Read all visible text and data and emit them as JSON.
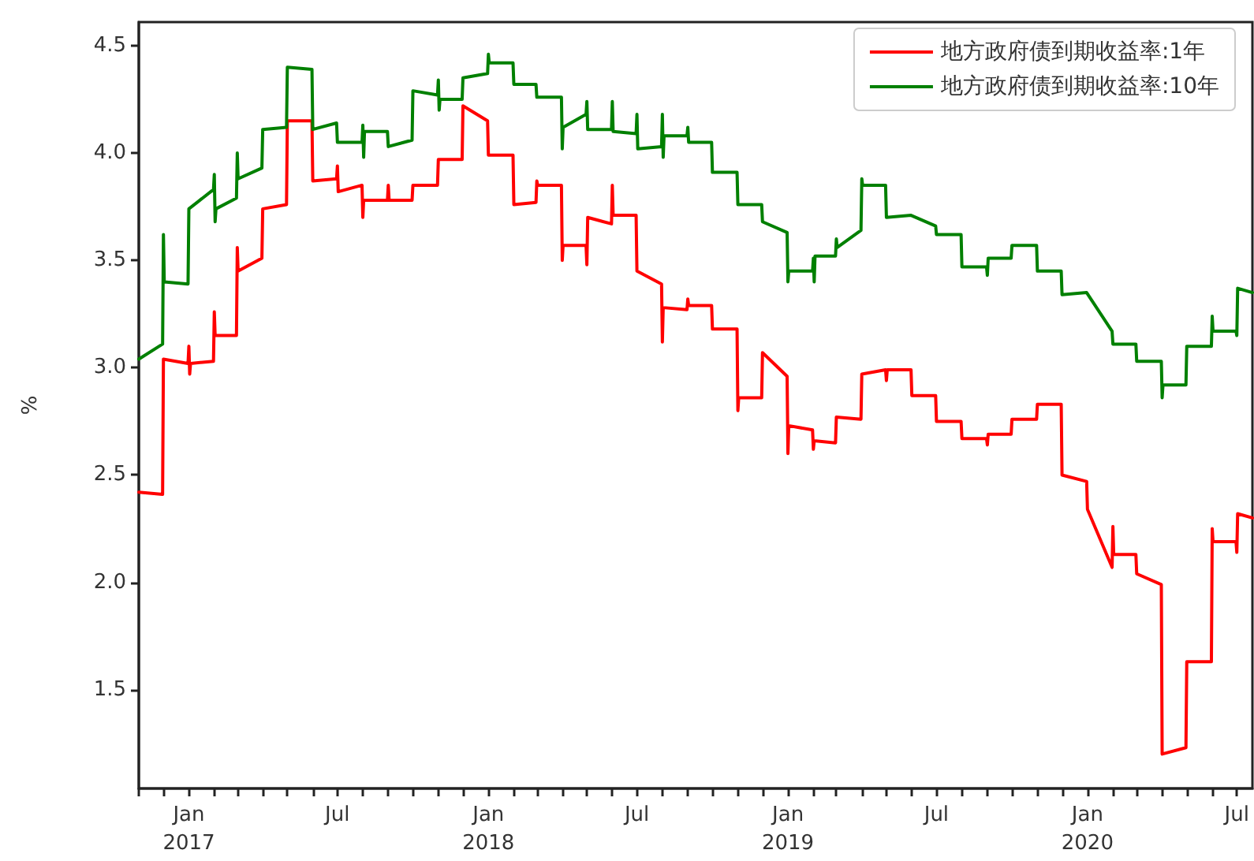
{
  "chart_data": {
    "type": "line",
    "ylabel": "%",
    "legend": "top right",
    "grid": false,
    "xlim": [
      "2016-11-01",
      "2020-07-20"
    ],
    "xticks": [
      {
        "value": "2016-11-01",
        "label": null
      },
      {
        "value": "2016-12-01",
        "label": null
      },
      {
        "value": "2017-01-01",
        "label": "Jan\n2017"
      },
      {
        "value": "2017-02-01",
        "label": null
      },
      {
        "value": "2017-03-01",
        "label": null
      },
      {
        "value": "2017-04-01",
        "label": null
      },
      {
        "value": "2017-05-01",
        "label": null
      },
      {
        "value": "2017-06-01",
        "label": null
      },
      {
        "value": "2017-07-01",
        "label": "Jul"
      },
      {
        "value": "2017-08-01",
        "label": null
      },
      {
        "value": "2017-09-01",
        "label": null
      },
      {
        "value": "2017-10-01",
        "label": null
      },
      {
        "value": "2017-11-01",
        "label": null
      },
      {
        "value": "2017-12-01",
        "label": null
      },
      {
        "value": "2018-01-01",
        "label": "Jan\n2018"
      },
      {
        "value": "2018-02-01",
        "label": null
      },
      {
        "value": "2018-03-01",
        "label": null
      },
      {
        "value": "2018-04-01",
        "label": null
      },
      {
        "value": "2018-05-01",
        "label": null
      },
      {
        "value": "2018-06-01",
        "label": null
      },
      {
        "value": "2018-07-01",
        "label": "Jul"
      },
      {
        "value": "2018-08-01",
        "label": null
      },
      {
        "value": "2018-09-01",
        "label": null
      },
      {
        "value": "2018-10-01",
        "label": null
      },
      {
        "value": "2018-11-01",
        "label": null
      },
      {
        "value": "2018-12-01",
        "label": null
      },
      {
        "value": "2019-01-01",
        "label": "Jan\n2019"
      },
      {
        "value": "2019-02-01",
        "label": null
      },
      {
        "value": "2019-03-01",
        "label": null
      },
      {
        "value": "2019-04-01",
        "label": null
      },
      {
        "value": "2019-05-01",
        "label": null
      },
      {
        "value": "2019-06-01",
        "label": null
      },
      {
        "value": "2019-07-01",
        "label": "Jul"
      },
      {
        "value": "2019-08-01",
        "label": null
      },
      {
        "value": "2019-09-01",
        "label": null
      },
      {
        "value": "2019-10-01",
        "label": null
      },
      {
        "value": "2019-11-01",
        "label": null
      },
      {
        "value": "2019-12-01",
        "label": null
      },
      {
        "value": "2020-01-01",
        "label": "Jan\n2020"
      },
      {
        "value": "2020-02-01",
        "label": null
      },
      {
        "value": "2020-03-01",
        "label": null
      },
      {
        "value": "2020-04-01",
        "label": null
      },
      {
        "value": "2020-05-01",
        "label": null
      },
      {
        "value": "2020-06-01",
        "label": null
      },
      {
        "value": "2020-07-01",
        "label": "Jul"
      }
    ],
    "ylim": [
      1.04,
      4.61
    ],
    "yticks": [
      {
        "value": 1.5,
        "label": "1.5"
      },
      {
        "value": 2,
        "label": "2.0"
      },
      {
        "value": 2.5,
        "label": "2.5"
      },
      {
        "value": 3,
        "label": "3.0"
      },
      {
        "value": 3.5,
        "label": "3.5"
      },
      {
        "value": 4,
        "label": "4.0"
      },
      {
        "value": 4.5,
        "label": "4.5"
      }
    ],
    "series": [
      {
        "name": "地方政府债到期收益率:1年",
        "color": "#ff0000",
        "x": [
          "2016-11-01",
          "2016-11-30",
          "2016-12-01",
          "2016-12-31",
          "2017-01-01",
          "2017-01-02",
          "2017-01-03",
          "2017-01-31",
          "2017-02-01",
          "2017-02-02",
          "2017-02-28",
          "2017-03-01",
          "2017-03-02",
          "2017-03-31",
          "2017-04-01",
          "2017-04-30",
          "2017-05-01",
          "2017-05-31",
          "2017-06-01",
          "2017-06-30",
          "2017-07-01",
          "2017-07-02",
          "2017-07-31",
          "2017-08-01",
          "2017-08-02",
          "2017-08-31",
          "2017-09-01",
          "2017-09-02",
          "2017-09-30",
          "2017-10-01",
          "2017-10-31",
          "2017-11-01",
          "2017-11-30",
          "2017-12-01",
          "2017-12-31",
          "2018-01-01",
          "2018-01-31",
          "2018-02-01",
          "2018-02-28",
          "2018-03-01",
          "2018-03-02",
          "2018-03-31",
          "2018-04-01",
          "2018-04-02",
          "2018-04-30",
          "2018-05-01",
          "2018-05-02",
          "2018-05-31",
          "2018-06-01",
          "2018-06-02",
          "2018-06-30",
          "2018-07-01",
          "2018-07-31",
          "2018-08-01",
          "2018-08-02",
          "2018-08-31",
          "2018-09-01",
          "2018-09-02",
          "2018-09-30",
          "2018-10-01",
          "2018-10-31",
          "2018-11-01",
          "2018-11-02",
          "2018-11-30",
          "2018-12-01",
          "2018-12-31",
          "2019-01-01",
          "2019-01-02",
          "2019-01-31",
          "2019-02-01",
          "2019-02-02",
          "2019-02-28",
          "2019-03-01",
          "2019-03-31",
          "2019-04-01",
          "2019-04-30",
          "2019-05-01",
          "2019-05-02",
          "2019-05-31",
          "2019-06-01",
          "2019-06-30",
          "2019-07-01",
          "2019-07-31",
          "2019-08-01",
          "2019-08-31",
          "2019-09-01",
          "2019-09-02",
          "2019-09-30",
          "2019-10-01",
          "2019-10-31",
          "2019-11-01",
          "2019-11-30",
          "2019-12-01",
          "2019-12-31",
          "2020-01-01",
          "2020-01-31",
          "2020-02-01",
          "2020-02-02",
          "2020-02-29",
          "2020-03-01",
          "2020-03-31",
          "2020-04-01",
          "2020-04-30",
          "2020-05-01",
          "2020-05-31",
          "2020-06-01",
          "2020-06-02",
          "2020-06-30",
          "2020-07-01",
          "2020-07-02",
          "2020-07-20"
        ],
        "values": [
          2.42,
          2.41,
          3.04,
          3.02,
          3.1,
          2.97,
          3.02,
          3.03,
          3.26,
          3.15,
          3.15,
          3.56,
          3.45,
          3.51,
          3.74,
          3.76,
          4.15,
          4.15,
          3.87,
          3.88,
          3.94,
          3.82,
          3.85,
          3.7,
          3.78,
          3.78,
          3.85,
          3.78,
          3.78,
          3.85,
          3.85,
          3.97,
          3.97,
          4.22,
          4.15,
          3.99,
          3.99,
          3.76,
          3.77,
          3.87,
          3.85,
          3.85,
          3.5,
          3.57,
          3.57,
          3.48,
          3.7,
          3.67,
          3.85,
          3.71,
          3.71,
          3.45,
          3.39,
          3.12,
          3.28,
          3.27,
          3.32,
          3.29,
          3.29,
          3.18,
          3.18,
          2.8,
          2.86,
          2.86,
          3.07,
          2.96,
          2.6,
          2.73,
          2.71,
          2.62,
          2.66,
          2.65,
          2.77,
          2.76,
          2.97,
          2.99,
          2.94,
          2.99,
          2.99,
          2.87,
          2.87,
          2.75,
          2.75,
          2.67,
          2.67,
          2.64,
          2.69,
          2.69,
          2.76,
          2.76,
          2.83,
          2.83,
          2.5,
          2.47,
          2.34,
          2.07,
          2.26,
          2.13,
          2.13,
          2.04,
          1.99,
          1.2,
          1.23,
          1.63,
          1.63,
          2.25,
          2.19,
          2.19,
          2.14,
          2.32,
          2.3
        ]
      },
      {
        "name": "地方政府债到期收益率:10年",
        "color": "#008000",
        "x": [
          "2016-11-01",
          "2016-11-30",
          "2016-12-01",
          "2016-12-02",
          "2016-12-31",
          "2017-01-01",
          "2017-01-31",
          "2017-02-01",
          "2017-02-02",
          "2017-02-03",
          "2017-02-28",
          "2017-03-01",
          "2017-03-02",
          "2017-03-31",
          "2017-04-01",
          "2017-04-30",
          "2017-05-01",
          "2017-05-31",
          "2017-06-01",
          "2017-06-30",
          "2017-07-01",
          "2017-07-31",
          "2017-08-01",
          "2017-08-02",
          "2017-08-03",
          "2017-08-31",
          "2017-09-01",
          "2017-09-30",
          "2017-10-01",
          "2017-10-31",
          "2017-11-01",
          "2017-11-02",
          "2017-11-03",
          "2017-11-30",
          "2017-12-01",
          "2017-12-31",
          "2018-01-01",
          "2018-01-02",
          "2018-01-31",
          "2018-02-01",
          "2018-02-28",
          "2018-03-01",
          "2018-03-31",
          "2018-04-01",
          "2018-04-02",
          "2018-04-30",
          "2018-05-01",
          "2018-05-02",
          "2018-05-31",
          "2018-06-01",
          "2018-06-02",
          "2018-06-30",
          "2018-07-01",
          "2018-07-02",
          "2018-07-31",
          "2018-08-01",
          "2018-08-02",
          "2018-08-03",
          "2018-08-31",
          "2018-09-01",
          "2018-09-02",
          "2018-09-30",
          "2018-10-01",
          "2018-10-31",
          "2018-11-01",
          "2018-11-30",
          "2018-12-01",
          "2018-12-31",
          "2019-01-01",
          "2019-01-02",
          "2019-01-31",
          "2019-02-01",
          "2019-02-02",
          "2019-02-03",
          "2019-02-28",
          "2019-03-01",
          "2019-03-02",
          "2019-03-31",
          "2019-04-01",
          "2019-04-02",
          "2019-04-30",
          "2019-05-01",
          "2019-05-31",
          "2019-06-01",
          "2019-06-30",
          "2019-07-01",
          "2019-07-31",
          "2019-08-01",
          "2019-08-31",
          "2019-09-01",
          "2019-09-02",
          "2019-09-30",
          "2019-10-01",
          "2019-10-31",
          "2019-11-01",
          "2019-11-30",
          "2019-12-01",
          "2019-12-31",
          "2020-01-01",
          "2020-01-31",
          "2020-02-01",
          "2020-02-29",
          "2020-03-01",
          "2020-03-31",
          "2020-04-01",
          "2020-04-02",
          "2020-04-30",
          "2020-05-01",
          "2020-05-31",
          "2020-06-01",
          "2020-06-02",
          "2020-06-30",
          "2020-07-01",
          "2020-07-02",
          "2020-07-20"
        ],
        "values": [
          3.04,
          3.11,
          3.62,
          3.4,
          3.39,
          3.74,
          3.83,
          3.9,
          3.68,
          3.74,
          3.79,
          4.0,
          3.88,
          3.93,
          4.11,
          4.12,
          4.4,
          4.39,
          4.11,
          4.14,
          4.05,
          4.05,
          4.13,
          3.98,
          4.1,
          4.1,
          4.03,
          4.06,
          4.29,
          4.27,
          4.34,
          4.2,
          4.25,
          4.25,
          4.35,
          4.37,
          4.46,
          4.42,
          4.42,
          4.32,
          4.32,
          4.26,
          4.26,
          4.02,
          4.12,
          4.18,
          4.24,
          4.11,
          4.11,
          4.24,
          4.1,
          4.09,
          4.18,
          4.02,
          4.03,
          4.18,
          3.98,
          4.08,
          4.08,
          4.12,
          4.05,
          4.05,
          3.91,
          3.91,
          3.76,
          3.76,
          3.68,
          3.63,
          3.4,
          3.45,
          3.45,
          3.51,
          3.4,
          3.52,
          3.52,
          3.6,
          3.56,
          3.64,
          3.88,
          3.85,
          3.85,
          3.7,
          3.71,
          3.71,
          3.66,
          3.62,
          3.62,
          3.47,
          3.47,
          3.43,
          3.51,
          3.51,
          3.57,
          3.57,
          3.45,
          3.45,
          3.34,
          3.35,
          3.35,
          3.17,
          3.11,
          3.11,
          3.03,
          3.03,
          2.86,
          2.92,
          2.92,
          3.1,
          3.1,
          3.24,
          3.17,
          3.17,
          3.15,
          3.37,
          3.35
        ]
      }
    ]
  }
}
